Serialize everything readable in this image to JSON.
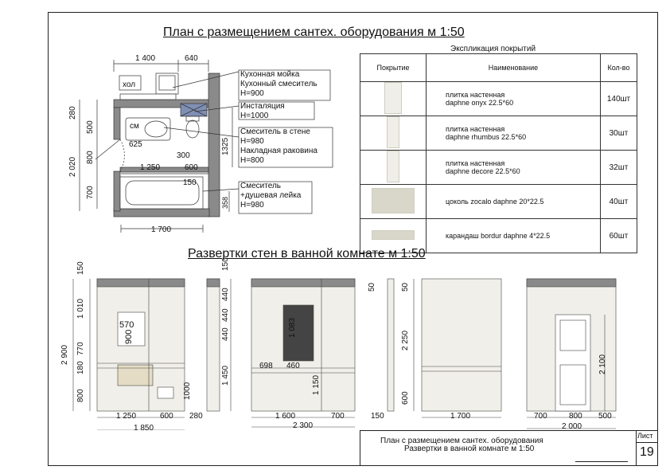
{
  "plan_title": "План с размещением сантех. оборудования м 1:50",
  "elevations_title": "Развертки стен в ванной комнате м 1:50",
  "legend": {
    "caption": "Экспликация покрытий",
    "headers": [
      "Покрытие",
      "Наименование",
      "Кол-во"
    ],
    "rows": [
      {
        "name": "плитка настенная\ndaphne onyx 22.5*60",
        "qty": "140шт"
      },
      {
        "name": "плитка настенная\ndaphne rhumbus 22.5*60",
        "qty": "30шт"
      },
      {
        "name": "плитка настенная\ndaphne decore 22.5*60",
        "qty": "32шт"
      },
      {
        "name": "цоколь zocalo daphne 20*22.5",
        "qty": "40шт"
      },
      {
        "name": "карандаш bordur daphne 4*22.5",
        "qty": "60шт"
      }
    ]
  },
  "plan": {
    "room_labels": {
      "hol": "хол",
      "sm": "см"
    },
    "notes": {
      "kitchen": "Кухонная мойка\nКухонный смеситель\nН=900",
      "insolation": "Инсталяция\nН=1000",
      "wall_mixer": "Смеситель в стене\nН=980\nНакладная раковина\nН=800",
      "mixer": "Смеситель\n+душевая лейка\nН=980"
    },
    "dims": {
      "top_a": "1 400",
      "top_b": "640",
      "d625": "625",
      "d300": "300",
      "d1250": "1 250",
      "d600": "600",
      "d150": "150",
      "bottom": "1 700",
      "v280": "280",
      "v500": "500",
      "v800": "800",
      "v2020": "2 020",
      "v700": "700",
      "v1325": "1325",
      "v358": "358"
    }
  },
  "elevations": {
    "dims": {
      "a_v150": "150",
      "a_v1010": "1 010",
      "a_v770": "770",
      "a_v180": "180",
      "a_v800": "800",
      "a_v2900": "2 900",
      "a_570": "570",
      "a_900": "900",
      "a_1000": "1000",
      "a_1250": "1 250",
      "a_600": "600",
      "a_1850": "1 850",
      "b_150": "150",
      "b_440a": "440",
      "b_440b": "440",
      "b_440c": "440",
      "b_1450": "1 450",
      "b_280": "280",
      "c_1083": "1 083",
      "c_698": "698",
      "c_460": "460",
      "c_1150": "1 150",
      "c_1600": "1 600",
      "c_700": "700",
      "c_2300": "2 300",
      "d_50": "50",
      "d_150": "150",
      "e_50": "50",
      "e_2250": "2 250",
      "e_600": "600",
      "e_1700": "1 700",
      "f_2100": "2 100",
      "f_700": "700",
      "f_800": "800",
      "f_500": "500",
      "f_2000": "2 000"
    }
  },
  "title_block": {
    "line1": "План с размещением сантех. оборудования",
    "line2": "Развертки в ванной комнате м 1:50",
    "sheet_label": "Лист",
    "sheet_no": "19"
  }
}
